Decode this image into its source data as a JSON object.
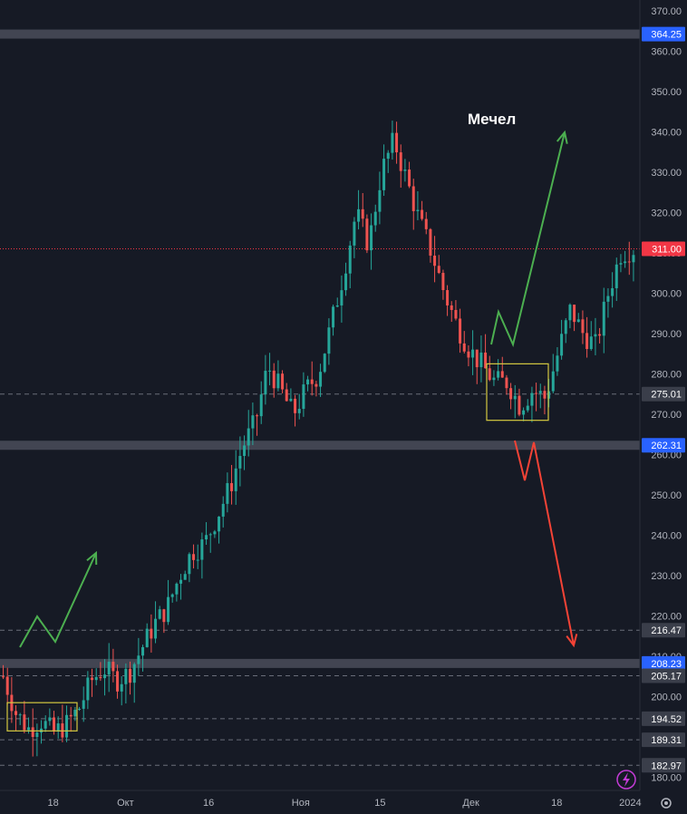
{
  "chart_data": {
    "type": "candlestick",
    "title": "Мечел",
    "ylim": [
      178,
      373
    ],
    "y_ticks": [
      180,
      190,
      200,
      210,
      220,
      230,
      240,
      250,
      260,
      270,
      280,
      290,
      300,
      310,
      320,
      330,
      340,
      350,
      360,
      370
    ],
    "y_tick_labels": [
      "180.00",
      "190.00",
      "200.00",
      "210.00",
      "220.00",
      "230.00",
      "240.00",
      "250.00",
      "260.00",
      "270.00",
      "280.00",
      "290.00",
      "300.00",
      "310.00",
      "320.00",
      "330.00",
      "340.00",
      "350.00",
      "360.00",
      "370.00"
    ],
    "x_tick_labels": [
      "18",
      "Окт",
      "16",
      "Ноя",
      "15",
      "Дек",
      "18",
      "2024"
    ],
    "x_tick_positions": [
      0.083,
      0.196,
      0.326,
      0.47,
      0.594,
      0.736,
      0.87,
      0.985
    ],
    "horizontal_levels": [
      {
        "value": 364.25,
        "label": "364.25",
        "style": "zone",
        "tag_color": "#2962ff"
      },
      {
        "value": 262.31,
        "label": "262.31",
        "style": "zone",
        "tag_color": "#2962ff"
      },
      {
        "value": 208.23,
        "label": "208.23",
        "style": "zone",
        "tag_color": "#2962ff"
      },
      {
        "value": 275.01,
        "label": "275.01",
        "style": "dashed",
        "tag_color": "#3a3e4a"
      },
      {
        "value": 216.47,
        "label": "216.47",
        "style": "dashed",
        "tag_color": "#3a3e4a"
      },
      {
        "value": 205.17,
        "label": "205.17",
        "style": "dashed",
        "tag_color": "#3a3e4a"
      },
      {
        "value": 194.52,
        "label": "194.52",
        "style": "dashed",
        "tag_color": "#3a3e4a"
      },
      {
        "value": 189.31,
        "label": "189.31",
        "style": "dashed",
        "tag_color": "#3a3e4a"
      },
      {
        "value": 182.97,
        "label": "182.97",
        "style": "dashed",
        "tag_color": "#3a3e4a"
      }
    ],
    "last_price": {
      "value": 311.0,
      "label": "311.00",
      "color": "#f23645"
    },
    "price_path": [
      [
        0.0,
        205
      ],
      [
        0.02,
        196
      ],
      [
        0.04,
        192
      ],
      [
        0.06,
        194
      ],
      [
        0.08,
        191
      ],
      [
        0.1,
        193
      ],
      [
        0.12,
        197
      ],
      [
        0.14,
        204
      ],
      [
        0.16,
        207
      ],
      [
        0.18,
        204
      ],
      [
        0.2,
        206
      ],
      [
        0.22,
        212
      ],
      [
        0.24,
        218
      ],
      [
        0.26,
        222
      ],
      [
        0.28,
        230
      ],
      [
        0.3,
        236
      ],
      [
        0.32,
        238
      ],
      [
        0.34,
        245
      ],
      [
        0.36,
        252
      ],
      [
        0.38,
        262
      ],
      [
        0.4,
        268
      ],
      [
        0.42,
        282
      ],
      [
        0.44,
        276
      ],
      [
        0.46,
        270
      ],
      [
        0.48,
        276
      ],
      [
        0.5,
        280
      ],
      [
        0.52,
        292
      ],
      [
        0.54,
        305
      ],
      [
        0.56,
        320
      ],
      [
        0.58,
        312
      ],
      [
        0.6,
        330
      ],
      [
        0.62,
        338
      ],
      [
        0.64,
        328
      ],
      [
        0.66,
        318
      ],
      [
        0.68,
        310
      ],
      [
        0.7,
        300
      ],
      [
        0.72,
        292
      ],
      [
        0.74,
        286
      ],
      [
        0.76,
        282
      ],
      [
        0.78,
        278
      ],
      [
        0.8,
        278
      ],
      [
        0.82,
        272
      ],
      [
        0.84,
        276
      ],
      [
        0.86,
        274
      ],
      [
        0.88,
        285
      ],
      [
        0.9,
        296
      ],
      [
        0.92,
        290
      ],
      [
        0.94,
        287
      ],
      [
        0.96,
        300
      ],
      [
        0.98,
        310
      ],
      [
        1.0,
        311
      ]
    ],
    "grid": false,
    "colors": {
      "up": "#26a69a",
      "down": "#ef5350",
      "background": "#161a25",
      "zone": "#4a4e5a",
      "box": "#d4c940",
      "arrow_up": "#4caf50",
      "arrow_down": "#f44336"
    }
  },
  "icons": {
    "bolt": "lightning-bolt-icon",
    "settings": "gear-icon"
  }
}
